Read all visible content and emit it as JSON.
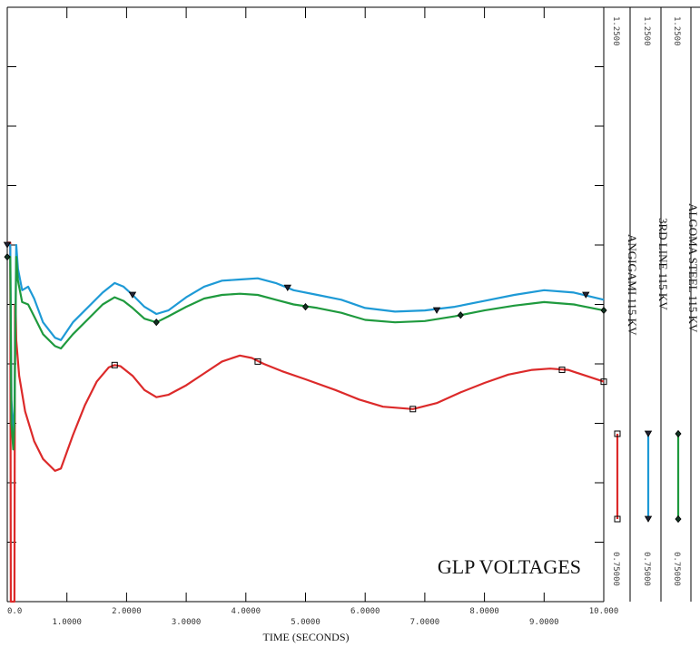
{
  "chart_data": {
    "type": "line",
    "title": "GLP VOLTAGES",
    "xlabel": "TIME (SECONDS)",
    "xlim": [
      0,
      10
    ],
    "x_ticks_upper": [
      "0.0",
      "2.0000",
      "4.0000",
      "6.0000",
      "8.0000",
      "10.000"
    ],
    "x_ticks_lower": [
      "1.0000",
      "3.0000",
      "5.0000",
      "7.0000",
      "9.0000"
    ],
    "series": [
      {
        "name": "ANGIGAMI 115 KV",
        "color": "#dc2a2a",
        "axis_max_label": "1.2500",
        "axis_min_label": "0.75000",
        "ylim": [
          0.75,
          1.25
        ],
        "points": [
          [
            0,
            1.052
          ],
          [
            0.05,
            1.052
          ],
          [
            0.06,
            0.75
          ],
          [
            0.12,
            0.75
          ],
          [
            0.13,
            1.0
          ],
          [
            0.14,
            1.0
          ],
          [
            0.15,
            0.97
          ],
          [
            0.2,
            0.94
          ],
          [
            0.3,
            0.91
          ],
          [
            0.45,
            0.885
          ],
          [
            0.6,
            0.87
          ],
          [
            0.8,
            0.86
          ],
          [
            0.9,
            0.862
          ],
          [
            1.1,
            0.89
          ],
          [
            1.3,
            0.915
          ],
          [
            1.5,
            0.935
          ],
          [
            1.7,
            0.947
          ],
          [
            1.8,
            0.949
          ],
          [
            1.9,
            0.948
          ],
          [
            2.1,
            0.94
          ],
          [
            2.3,
            0.928
          ],
          [
            2.5,
            0.922
          ],
          [
            2.7,
            0.924
          ],
          [
            3.0,
            0.932
          ],
          [
            3.3,
            0.942
          ],
          [
            3.6,
            0.952
          ],
          [
            3.9,
            0.957
          ],
          [
            4.1,
            0.955
          ],
          [
            4.3,
            0.95
          ],
          [
            4.6,
            0.944
          ],
          [
            5.0,
            0.937
          ],
          [
            5.5,
            0.928
          ],
          [
            5.9,
            0.92
          ],
          [
            6.3,
            0.914
          ],
          [
            6.8,
            0.912
          ],
          [
            7.2,
            0.917
          ],
          [
            7.6,
            0.926
          ],
          [
            8.0,
            0.934
          ],
          [
            8.4,
            0.941
          ],
          [
            8.8,
            0.945
          ],
          [
            9.1,
            0.946
          ],
          [
            9.4,
            0.945
          ],
          [
            9.7,
            0.94
          ],
          [
            10,
            0.935
          ]
        ],
        "markers": [
          [
            1.8,
            0.949
          ],
          [
            4.2,
            0.952
          ],
          [
            6.8,
            0.912
          ],
          [
            9.3,
            0.945
          ],
          [
            10,
            0.935
          ]
        ]
      },
      {
        "name": "3RD LINE 115 KV",
        "color": "#1e9ad6",
        "axis_max_label": "1.2500",
        "axis_min_label": "0.75000",
        "ylim": [
          0.75,
          1.25
        ],
        "points": [
          [
            0,
            1.05
          ],
          [
            0.05,
            1.05
          ],
          [
            0.07,
            0.92
          ],
          [
            0.1,
            0.89
          ],
          [
            0.12,
            0.91
          ],
          [
            0.15,
            1.05
          ],
          [
            0.18,
            1.03
          ],
          [
            0.25,
            1.012
          ],
          [
            0.35,
            1.015
          ],
          [
            0.45,
            1.005
          ],
          [
            0.6,
            0.985
          ],
          [
            0.8,
            0.972
          ],
          [
            0.9,
            0.97
          ],
          [
            1.1,
            0.985
          ],
          [
            1.4,
            1.0
          ],
          [
            1.6,
            1.01
          ],
          [
            1.8,
            1.018
          ],
          [
            1.95,
            1.015
          ],
          [
            2.1,
            1.008
          ],
          [
            2.3,
            0.998
          ],
          [
            2.5,
            0.992
          ],
          [
            2.7,
            0.995
          ],
          [
            3.0,
            1.006
          ],
          [
            3.3,
            1.015
          ],
          [
            3.6,
            1.02
          ],
          [
            3.9,
            1.021
          ],
          [
            4.2,
            1.022
          ],
          [
            4.5,
            1.018
          ],
          [
            4.8,
            1.012
          ],
          [
            5.2,
            1.008
          ],
          [
            5.6,
            1.004
          ],
          [
            6.0,
            0.997
          ],
          [
            6.5,
            0.994
          ],
          [
            7.0,
            0.995
          ],
          [
            7.5,
            0.998
          ],
          [
            8.0,
            1.003
          ],
          [
            8.5,
            1.008
          ],
          [
            9.0,
            1.012
          ],
          [
            9.5,
            1.01
          ],
          [
            10,
            1.004
          ]
        ],
        "markers": [
          [
            0,
            1.05
          ],
          [
            2.1,
            1.008
          ],
          [
            4.7,
            1.014
          ],
          [
            7.2,
            0.995
          ],
          [
            9.7,
            1.008
          ]
        ]
      },
      {
        "name": "ALGOMA STEEL 115 KV",
        "color": "#1f9a3e",
        "axis_max_label": "1.2500",
        "axis_min_label": "0.75000",
        "ylim": [
          0.75,
          1.25
        ],
        "points": [
          [
            0,
            1.04
          ],
          [
            0.05,
            1.04
          ],
          [
            0.07,
            0.9
          ],
          [
            0.1,
            0.878
          ],
          [
            0.12,
            0.9
          ],
          [
            0.15,
            1.04
          ],
          [
            0.18,
            1.02
          ],
          [
            0.25,
            1.002
          ],
          [
            0.35,
            1.0
          ],
          [
            0.45,
            0.99
          ],
          [
            0.6,
            0.975
          ],
          [
            0.8,
            0.965
          ],
          [
            0.9,
            0.963
          ],
          [
            1.1,
            0.975
          ],
          [
            1.4,
            0.99
          ],
          [
            1.6,
            1.0
          ],
          [
            1.8,
            1.006
          ],
          [
            1.95,
            1.003
          ],
          [
            2.1,
            0.997
          ],
          [
            2.3,
            0.988
          ],
          [
            2.5,
            0.985
          ],
          [
            2.7,
            0.99
          ],
          [
            3.0,
            0.998
          ],
          [
            3.3,
            1.005
          ],
          [
            3.6,
            1.008
          ],
          [
            3.9,
            1.009
          ],
          [
            4.2,
            1.008
          ],
          [
            4.5,
            1.004
          ],
          [
            4.8,
            1.0
          ],
          [
            5.2,
            0.997
          ],
          [
            5.6,
            0.993
          ],
          [
            6.0,
            0.987
          ],
          [
            6.5,
            0.985
          ],
          [
            7.0,
            0.986
          ],
          [
            7.5,
            0.99
          ],
          [
            8.0,
            0.995
          ],
          [
            8.5,
            0.999
          ],
          [
            9.0,
            1.002
          ],
          [
            9.5,
            1.0
          ],
          [
            10,
            0.995
          ]
        ],
        "markers": [
          [
            0,
            1.04
          ],
          [
            2.5,
            0.985
          ],
          [
            5.0,
            0.998
          ],
          [
            7.6,
            0.991
          ],
          [
            10,
            0.995
          ]
        ]
      }
    ]
  }
}
